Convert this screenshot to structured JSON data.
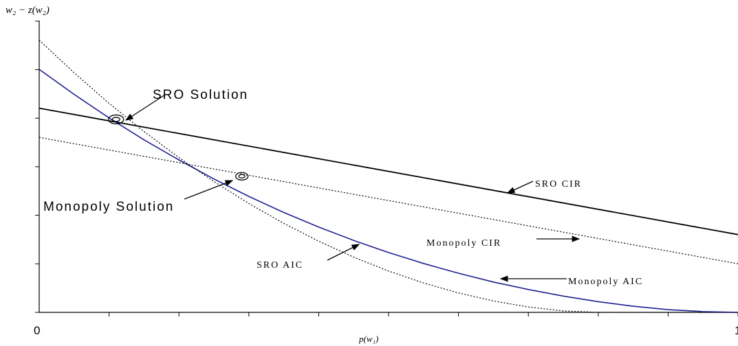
{
  "chart_data": {
    "type": "line",
    "ylabel": "w₂ − z(w₂)",
    "xlabel": "p(w₁)",
    "xlim": [
      0,
      1
    ],
    "ylim": [
      0,
      1
    ],
    "x_tick_labels": {
      "min": "0",
      "max": "1"
    },
    "grid": false,
    "series": [
      {
        "name": "SRO CIR",
        "style": "solid",
        "color": "#000000",
        "x": [
          0,
          1
        ],
        "y": [
          0.84,
          0.32
        ]
      },
      {
        "name": "SRO AIC",
        "style": "solid",
        "color": "#1c1f8f",
        "x": [
          0,
          0.05,
          0.1,
          0.15,
          0.2,
          0.25,
          0.3,
          0.35,
          0.4,
          0.45,
          0.5,
          0.55,
          0.6,
          0.65,
          0.7,
          0.75,
          0.8,
          0.85,
          0.9,
          0.95,
          1.0
        ],
        "y": [
          1.0,
          0.897,
          0.8,
          0.71,
          0.627,
          0.549,
          0.477,
          0.411,
          0.351,
          0.296,
          0.246,
          0.201,
          0.161,
          0.125,
          0.094,
          0.067,
          0.044,
          0.025,
          0.011,
          0.003,
          0.0
        ]
      },
      {
        "name": "Monopoly CIR",
        "style": "dotted",
        "color": "#000000",
        "x": [
          0,
          1
        ],
        "y": [
          0.72,
          0.2
        ]
      },
      {
        "name": "Monopoly AIC",
        "style": "dotted",
        "color": "#000000",
        "x": [
          0,
          0.05,
          0.1,
          0.15,
          0.2,
          0.25,
          0.3,
          0.35,
          0.4,
          0.45,
          0.5,
          0.55,
          0.6,
          0.65,
          0.7,
          0.75,
          0.8,
          0.85,
          0.9,
          0.95,
          1.0
        ],
        "y": [
          1.12,
          0.986,
          0.86,
          0.744,
          0.637,
          0.538,
          0.448,
          0.366,
          0.293,
          0.227,
          0.17,
          0.121,
          0.08,
          0.047,
          0.022,
          0.006,
          0.0,
          0.0,
          0.0,
          0.0,
          0.0
        ]
      }
    ],
    "annotations": [
      {
        "text": "SRO Solution",
        "point": [
          0.11,
          0.794
        ]
      },
      {
        "text": "Monopoly Solution",
        "point": [
          0.29,
          0.56
        ]
      }
    ]
  }
}
